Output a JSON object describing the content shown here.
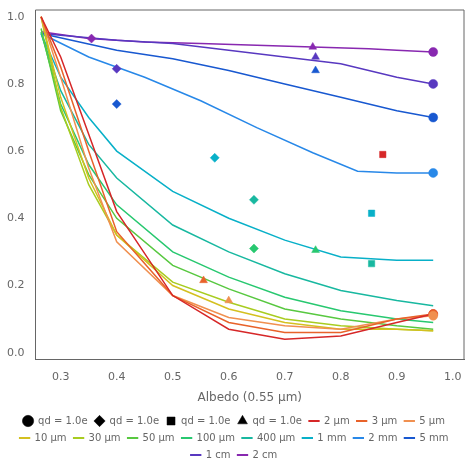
{
  "chart_data": {
    "type": "line",
    "xlabel": "Albedo (0.55 μm)",
    "xlim": [
      0.255,
      1.02
    ],
    "ylim": [
      -0.02,
      1.02
    ],
    "xticks": [
      0.3,
      0.4,
      0.5,
      0.6,
      0.7,
      0.8,
      0.9,
      {
        "value": 1.0,
        "label": "1.0"
      }
    ],
    "yticks": [
      {
        "value": 0.0,
        "label": "0.0"
      },
      0.2,
      0.4,
      0.6,
      0.8,
      {
        "value": 1.0,
        "label": "1.0"
      }
    ],
    "grid": false,
    "legend": "bottom",
    "series": [
      {
        "name": "2 μm",
        "type": "line",
        "color": "#d62728",
        "x": [
          0.265,
          0.3,
          0.35,
          0.4,
          0.5,
          0.6,
          0.7,
          0.8,
          0.9,
          0.965
        ],
        "values": [
          1.0,
          0.88,
          0.65,
          0.42,
          0.17,
          0.07,
          0.04,
          0.05,
          0.09,
          0.115
        ]
      },
      {
        "name": "3 μm",
        "type": "line",
        "color": "#e8622a",
        "x": [
          0.265,
          0.3,
          0.35,
          0.4,
          0.5,
          0.6,
          0.7,
          0.8,
          0.9,
          0.965
        ],
        "values": [
          1.0,
          0.85,
          0.6,
          0.36,
          0.17,
          0.09,
          0.06,
          0.06,
          0.1,
          0.115
        ]
      },
      {
        "name": "5 μm",
        "type": "line",
        "color": "#f09050",
        "x": [
          0.265,
          0.3,
          0.35,
          0.4,
          0.5,
          0.6,
          0.7,
          0.8,
          0.9,
          0.965
        ],
        "values": [
          1.0,
          0.82,
          0.55,
          0.33,
          0.17,
          0.105,
          0.08,
          0.07,
          0.1,
          0.11
        ]
      },
      {
        "name": "10 μm",
        "type": "line",
        "color": "#d4c020",
        "x": [
          0.265,
          0.3,
          0.35,
          0.4,
          0.5,
          0.6,
          0.7,
          0.8,
          0.9,
          0.965
        ],
        "values": [
          1.0,
          0.76,
          0.52,
          0.35,
          0.2,
          0.13,
          0.09,
          0.07,
          0.07,
          0.065
        ]
      },
      {
        "name": "30 μm",
        "type": "line",
        "color": "#a8cc20",
        "x": [
          0.265,
          0.3,
          0.35,
          0.4,
          0.5,
          0.6,
          0.7,
          0.8,
          0.9,
          0.965
        ],
        "values": [
          1.0,
          0.73,
          0.5,
          0.35,
          0.21,
          0.15,
          0.1,
          0.08,
          0.07,
          0.065
        ]
      },
      {
        "name": "50 μm",
        "type": "line",
        "color": "#58c840",
        "x": [
          0.265,
          0.3,
          0.35,
          0.4,
          0.5,
          0.6,
          0.7,
          0.8,
          0.9,
          0.965
        ],
        "values": [
          0.965,
          0.72,
          0.53,
          0.4,
          0.26,
          0.19,
          0.13,
          0.1,
          0.08,
          0.07
        ]
      },
      {
        "name": "100 μm",
        "type": "line",
        "color": "#28c870",
        "x": [
          0.265,
          0.3,
          0.35,
          0.4,
          0.5,
          0.6,
          0.7,
          0.8,
          0.9,
          0.965
        ],
        "values": [
          0.955,
          0.74,
          0.56,
          0.44,
          0.3,
          0.225,
          0.165,
          0.125,
          0.1,
          0.09
        ]
      },
      {
        "name": "400 μm",
        "type": "line",
        "color": "#18b8a0",
        "x": [
          0.265,
          0.3,
          0.35,
          0.4,
          0.5,
          0.6,
          0.7,
          0.8,
          0.9,
          0.965
        ],
        "values": [
          0.95,
          0.78,
          0.62,
          0.52,
          0.38,
          0.3,
          0.235,
          0.185,
          0.155,
          0.14
        ]
      },
      {
        "name": "1 mm",
        "type": "line",
        "color": "#08b0c8",
        "x": [
          0.265,
          0.3,
          0.35,
          0.4,
          0.5,
          0.6,
          0.7,
          0.8,
          0.9,
          0.965
        ],
        "values": [
          0.95,
          0.82,
          0.7,
          0.6,
          0.48,
          0.4,
          0.335,
          0.285,
          0.275,
          0.275
        ]
      },
      {
        "name": "2 mm",
        "type": "line",
        "color": "#2888e8",
        "x": [
          0.265,
          0.35,
          0.45,
          0.55,
          0.65,
          0.75,
          0.83,
          0.9,
          0.965
        ],
        "values": [
          0.95,
          0.88,
          0.82,
          0.75,
          0.67,
          0.595,
          0.54,
          0.535,
          0.535
        ]
      },
      {
        "name": "5 mm",
        "type": "line",
        "color": "#1858d0",
        "x": [
          0.265,
          0.4,
          0.5,
          0.6,
          0.7,
          0.8,
          0.9,
          0.965
        ],
        "values": [
          0.95,
          0.9,
          0.875,
          0.84,
          0.8,
          0.76,
          0.72,
          0.7
        ]
      },
      {
        "name": "1 cm",
        "type": "line",
        "color": "#5838c0",
        "x": [
          0.265,
          0.4,
          0.5,
          0.6,
          0.7,
          0.8,
          0.9,
          0.965
        ],
        "values": [
          0.95,
          0.93,
          0.92,
          0.9,
          0.88,
          0.86,
          0.82,
          0.8
        ]
      },
      {
        "name": "2 cm",
        "type": "line",
        "color": "#8828b0",
        "x": [
          0.265,
          0.35,
          0.45,
          0.55,
          0.65,
          0.75,
          0.85,
          0.9,
          0.965
        ],
        "values": [
          0.955,
          0.935,
          0.925,
          0.92,
          0.915,
          0.91,
          0.905,
          0.9,
          0.895
        ]
      },
      {
        "name": "qd = 1.0e",
        "type": "scatter",
        "marker": "circle",
        "color": "#000000",
        "x": [
          0.965,
          0.965,
          0.965,
          0.965,
          0.965,
          0.965,
          0.965
        ],
        "values": [
          0.115,
          0.115,
          0.11,
          0.535,
          0.7,
          0.8,
          0.895
        ],
        "colors": [
          "#d62728",
          "#e8622a",
          "#f09050",
          "#2888e8",
          "#1858d0",
          "#5838c0",
          "#8828b0"
        ]
      },
      {
        "name": "qd = 1.0e",
        "type": "scatter",
        "marker": "diamond",
        "color": "#000000",
        "x": [
          0.355,
          0.4,
          0.4,
          0.575,
          0.645,
          0.645
        ],
        "values": [
          0.935,
          0.845,
          0.74,
          0.58,
          0.455,
          0.31
        ],
        "colors": [
          "#8828b0",
          "#5838c0",
          "#1858d0",
          "#08b0c8",
          "#18b8a0",
          "#28c870"
        ]
      },
      {
        "name": "qd = 1.0e",
        "type": "scatter",
        "marker": "square",
        "color": "#000000",
        "x": [
          0.875,
          0.855,
          0.855
        ],
        "values": [
          0.59,
          0.415,
          0.265
        ],
        "colors": [
          "#d62728",
          "#08b0c8",
          "#18b8a0"
        ]
      },
      {
        "name": "qd = 1.0e",
        "type": "scatter",
        "marker": "triangle",
        "color": "#000000",
        "x": [
          0.75,
          0.755,
          0.755,
          0.755,
          0.555,
          0.6
        ],
        "values": [
          0.91,
          0.88,
          0.84,
          0.305,
          0.215,
          0.155
        ],
        "colors": [
          "#8828b0",
          "#5838c0",
          "#1858d0",
          "#28c870",
          "#e8622a",
          "#f09050"
        ]
      }
    ]
  }
}
